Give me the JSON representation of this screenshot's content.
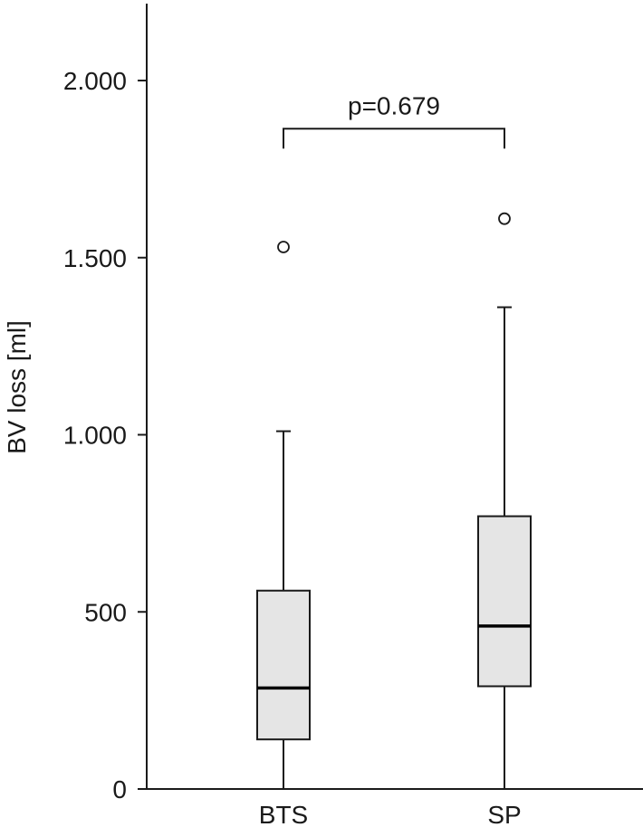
{
  "chart_data": {
    "type": "boxplot",
    "title": "",
    "xlabel": "",
    "ylabel": "BV loss [ml]",
    "ylim": [
      0,
      2220
    ],
    "yticks": [
      {
        "value": 0,
        "label": "0"
      },
      {
        "value": 500,
        "label": "500"
      },
      {
        "value": 1000,
        "label": "1.000"
      },
      {
        "value": 1500,
        "label": "1.500"
      },
      {
        "value": 2000,
        "label": "2.000"
      }
    ],
    "grid": false,
    "categories": [
      "BTS",
      "SP"
    ],
    "boxes": [
      {
        "category": "BTS",
        "whisker_low": 0,
        "q1": 140,
        "median": 285,
        "q3": 560,
        "whisker_high": 1010,
        "outliers": [
          1530
        ]
      },
      {
        "category": "SP",
        "whisker_low": 0,
        "q1": 290,
        "median": 460,
        "q3": 770,
        "whisker_high": 1360,
        "outliers": [
          1610
        ]
      }
    ],
    "annotation": {
      "text": "p=0.679",
      "bracket_value": 1800
    },
    "colors": {
      "box_fill": "#e5e5e5",
      "line": "#1a1a1a",
      "background": "#ffffff"
    }
  }
}
